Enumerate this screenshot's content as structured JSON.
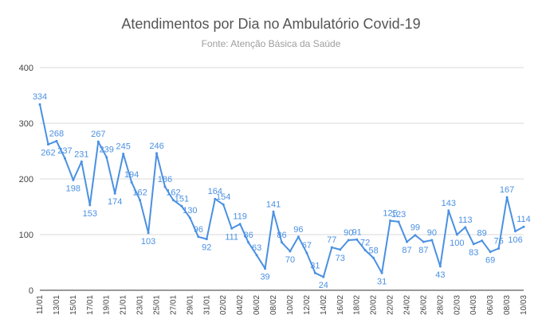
{
  "chart_data": {
    "type": "line",
    "title": "Atendimentos por Dia no Ambulatório Covid-19",
    "subtitle": "Fonte: Atenção Básica da Saúde",
    "xlabel": "",
    "ylabel": "",
    "ylim": [
      0,
      400
    ],
    "yticks": [
      0,
      100,
      200,
      300,
      400
    ],
    "grid": true,
    "legend": "none",
    "series_color": "#4a90e2",
    "x": [
      "11/01",
      "12/01",
      "13/01",
      "14/01",
      "15/01",
      "16/01",
      "17/01",
      "18/01",
      "19/01",
      "20/01",
      "21/01",
      "22/01",
      "23/01",
      "24/01",
      "25/01",
      "26/01",
      "27/01",
      "28/01",
      "29/01",
      "30/01",
      "31/01",
      "01/02",
      "02/02",
      "03/02",
      "04/02",
      "05/02",
      "06/02",
      "07/02",
      "08/02",
      "09/02",
      "10/02",
      "11/02",
      "12/02",
      "13/02",
      "14/02",
      "15/02",
      "16/02",
      "17/02",
      "18/02",
      "19/02",
      "20/02",
      "21/02",
      "22/02",
      "23/02",
      "24/02",
      "25/02",
      "26/02",
      "27/02",
      "28/02",
      "01/03",
      "02/03",
      "03/03",
      "04/03",
      "05/03",
      "06/03",
      "07/03",
      "08/03",
      "09/03",
      "10/03"
    ],
    "xtick_labels": [
      "11/01",
      "13/01",
      "15/01",
      "17/01",
      "19/01",
      "21/01",
      "23/01",
      "25/01",
      "27/01",
      "29/01",
      "31/01",
      "02/02",
      "04/02",
      "06/02",
      "08/02",
      "10/02",
      "12/02",
      "14/02",
      "16/02",
      "18/02",
      "20/02",
      "22/02",
      "24/02",
      "26/02",
      "28/02",
      "02/03",
      "04/03",
      "06/03",
      "08/03",
      "10/03"
    ],
    "values": [
      334,
      262,
      268,
      237,
      198,
      231,
      153,
      267,
      239,
      174,
      245,
      194,
      162,
      103,
      246,
      186,
      162,
      151,
      130,
      96,
      92,
      164,
      154,
      111,
      119,
      86,
      63,
      39,
      141,
      86,
      70,
      96,
      67,
      31,
      24,
      77,
      73,
      90,
      91,
      72,
      58,
      31,
      125,
      123,
      87,
      99,
      87,
      90,
      43,
      143,
      100,
      113,
      83,
      89,
      69,
      75,
      167,
      106,
      114
    ]
  }
}
